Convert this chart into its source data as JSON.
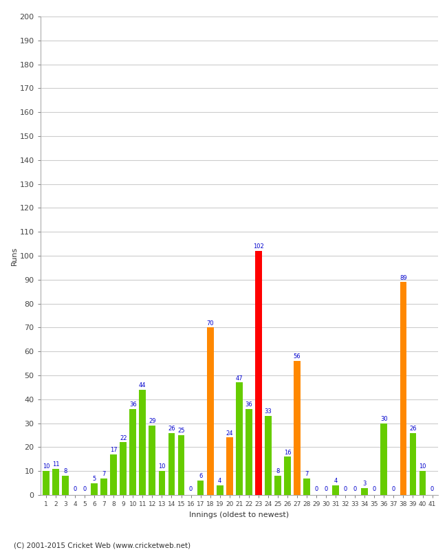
{
  "xlabel": "Innings (oldest to newest)",
  "ylabel": "Runs",
  "ylim": [
    0,
    200
  ],
  "yticks": [
    0,
    10,
    20,
    30,
    40,
    50,
    60,
    70,
    80,
    90,
    100,
    110,
    120,
    130,
    140,
    150,
    160,
    170,
    180,
    190,
    200
  ],
  "innings": [
    1,
    2,
    3,
    4,
    5,
    6,
    7,
    8,
    9,
    10,
    11,
    12,
    13,
    14,
    15,
    16,
    17,
    18,
    19,
    20,
    21,
    22,
    23,
    24,
    25,
    26,
    27,
    28,
    29,
    30,
    31,
    32,
    33,
    34,
    35,
    36,
    37,
    38,
    39,
    40,
    41
  ],
  "values": [
    10,
    11,
    8,
    0,
    0,
    5,
    7,
    17,
    22,
    36,
    44,
    29,
    10,
    26,
    25,
    0,
    6,
    70,
    4,
    24,
    47,
    36,
    102,
    33,
    8,
    16,
    56,
    7,
    0,
    0,
    4,
    0,
    0,
    3,
    0,
    30,
    0,
    89,
    26,
    10,
    0
  ],
  "colors": [
    "#66cc00",
    "#66cc00",
    "#66cc00",
    "#66cc00",
    "#66cc00",
    "#66cc00",
    "#66cc00",
    "#66cc00",
    "#66cc00",
    "#66cc00",
    "#66cc00",
    "#66cc00",
    "#66cc00",
    "#66cc00",
    "#66cc00",
    "#66cc00",
    "#66cc00",
    "#ff8800",
    "#66cc00",
    "#ff8800",
    "#66cc00",
    "#66cc00",
    "#ff0000",
    "#66cc00",
    "#66cc00",
    "#66cc00",
    "#ff8800",
    "#66cc00",
    "#66cc00",
    "#66cc00",
    "#66cc00",
    "#66cc00",
    "#66cc00",
    "#66cc00",
    "#66cc00",
    "#66cc00",
    "#66cc00",
    "#ff8800",
    "#66cc00",
    "#66cc00",
    "#66cc00"
  ],
  "label_color": "#0000cc",
  "label_fontsize": 6,
  "background_color": "#ffffff",
  "grid_color": "#cccccc",
  "footer": "(C) 2001-2015 Cricket Web (www.cricketweb.net)"
}
